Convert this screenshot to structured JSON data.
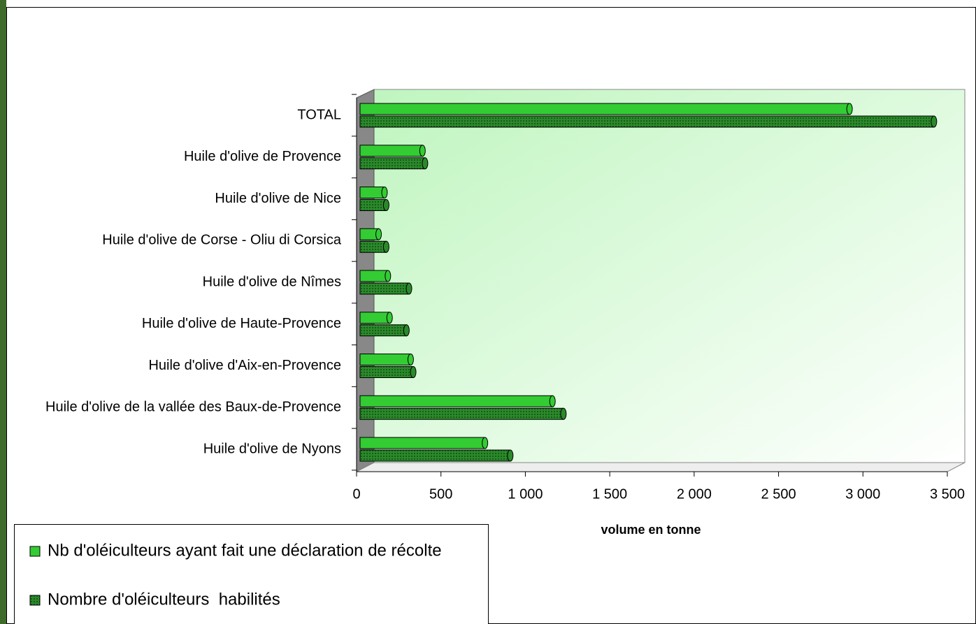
{
  "chart_data": {
    "type": "bar",
    "orientation": "horizontal",
    "x_label": "volume en tonne",
    "categories": [
      "Huile d'olive de Nyons",
      "Huile d'olive de la vallée des Baux-de-Provence",
      "Huile d'olive d'Aix-en-Provence",
      "Huile d'olive de Haute-Provence",
      "Huile d'olive de Nîmes",
      "Huile d'olive de Corse - Oliu di Corsica",
      "Huile d'olive de Nice",
      "Huile d'olive de Provence",
      "TOTAL"
    ],
    "series": [
      {
        "name": "Nb d'oléiculteurs ayant fait une déclaration de récolte",
        "color": "#33cc33",
        "values": [
          740,
          1140,
          300,
          175,
          165,
          110,
          145,
          370,
          2900
        ]
      },
      {
        "name": "Nombre d'oléiculteurs  habilités",
        "color": "#2a8a2a",
        "values": [
          890,
          1205,
          315,
          275,
          290,
          155,
          155,
          385,
          3400
        ]
      }
    ],
    "xlim": [
      0,
      3500
    ],
    "xticks": [
      0,
      500,
      {
        "value": 1000,
        "label": "1 000"
      },
      {
        "value": 1500,
        "label": "1 500"
      },
      {
        "value": 2000,
        "label": "2 000"
      },
      {
        "value": 2500,
        "label": "2 500"
      },
      {
        "value": 3000,
        "label": "3 000"
      },
      {
        "value": 3500,
        "label": "3 500"
      }
    ],
    "legend": "bottom-left"
  }
}
